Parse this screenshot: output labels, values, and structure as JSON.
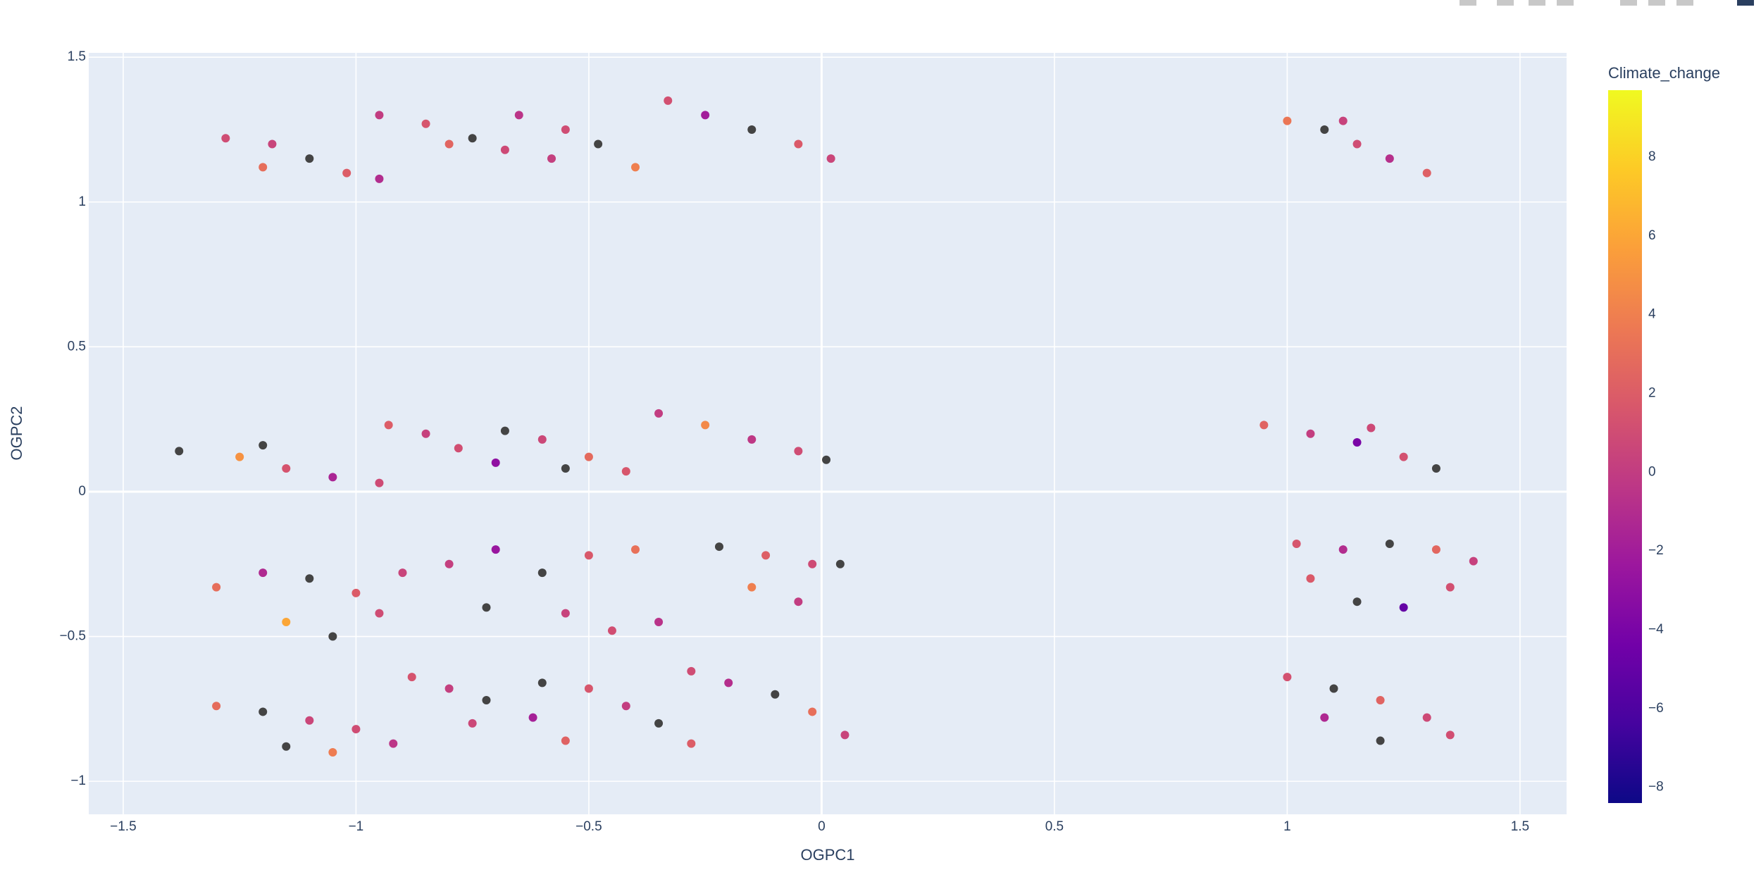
{
  "chart_data": {
    "type": "scatter",
    "x_label": "OGPC1",
    "y_label": "OGPC2",
    "colorbar_title": "Climate_change",
    "x": [
      -1.28,
      -1.18,
      -1.1,
      -1.02,
      -0.95,
      -1.2,
      -0.95,
      -0.85,
      -0.75,
      -0.68,
      -0.8,
      -0.65,
      -0.55,
      -0.48,
      -0.4,
      -0.58,
      -0.33,
      -0.25,
      -0.15,
      -0.05,
      0.02,
      1.0,
      1.08,
      1.15,
      1.22,
      1.3,
      1.12,
      -1.38,
      -1.25,
      -1.15,
      -1.05,
      -0.95,
      -1.2,
      -0.93,
      -0.85,
      -0.78,
      -0.7,
      -0.68,
      -0.6,
      -0.5,
      -0.42,
      -0.55,
      -0.35,
      -0.25,
      -0.15,
      -0.05,
      0.01,
      0.95,
      1.05,
      1.15,
      1.25,
      1.32,
      1.18,
      -1.3,
      -1.2,
      -1.1,
      -1.0,
      -0.9,
      -1.15,
      -1.05,
      -0.95,
      -0.8,
      -0.7,
      -0.6,
      -0.5,
      -0.4,
      -0.72,
      -0.55,
      -0.45,
      -0.35,
      -0.22,
      -0.12,
      -0.02,
      0.04,
      -0.15,
      -0.05,
      1.02,
      1.12,
      1.22,
      1.32,
      1.4,
      1.05,
      1.15,
      1.25,
      1.35,
      -1.3,
      -1.2,
      -1.1,
      -1.0,
      -0.92,
      -1.15,
      -1.05,
      -0.88,
      -0.8,
      -0.72,
      -0.62,
      -0.55,
      -0.75,
      -0.6,
      -0.5,
      -0.42,
      -0.35,
      -0.28,
      -0.28,
      -0.2,
      -0.1,
      -0.02,
      0.05,
      1.0,
      1.1,
      1.2,
      1.3,
      1.08,
      1.2,
      1.35
    ],
    "y": [
      1.22,
      1.2,
      1.15,
      1.1,
      1.08,
      1.12,
      1.3,
      1.27,
      1.22,
      1.18,
      1.2,
      1.3,
      1.25,
      1.2,
      1.12,
      1.15,
      1.35,
      1.3,
      1.25,
      1.2,
      1.15,
      1.28,
      1.25,
      1.2,
      1.15,
      1.1,
      1.28,
      0.14,
      0.12,
      0.08,
      0.05,
      0.03,
      0.16,
      0.23,
      0.2,
      0.15,
      0.1,
      0.21,
      0.18,
      0.12,
      0.07,
      0.08,
      0.27,
      0.23,
      0.18,
      0.14,
      0.11,
      0.23,
      0.2,
      0.17,
      0.12,
      0.08,
      0.22,
      -0.33,
      -0.28,
      -0.3,
      -0.35,
      -0.28,
      -0.45,
      -0.5,
      -0.42,
      -0.25,
      -0.2,
      -0.28,
      -0.22,
      -0.2,
      -0.4,
      -0.42,
      -0.48,
      -0.45,
      -0.19,
      -0.22,
      -0.25,
      -0.25,
      -0.33,
      -0.38,
      -0.18,
      -0.2,
      -0.18,
      -0.2,
      -0.24,
      -0.3,
      -0.38,
      -0.4,
      -0.33,
      -0.74,
      -0.76,
      -0.79,
      -0.82,
      -0.87,
      -0.88,
      -0.9,
      -0.64,
      -0.68,
      -0.72,
      -0.78,
      -0.86,
      -0.8,
      -0.66,
      -0.68,
      -0.74,
      -0.8,
      -0.87,
      -0.62,
      -0.66,
      -0.7,
      -0.76,
      -0.84,
      -0.64,
      -0.68,
      -0.72,
      -0.78,
      -0.78,
      -0.86,
      -0.84
    ],
    "marker_color": [
      1,
      0.5,
      null,
      2,
      -1,
      3,
      0,
      1.5,
      null,
      0.8,
      2.5,
      -0.5,
      1,
      null,
      4,
      0.2,
      1.2,
      -2,
      null,
      1.8,
      0.6,
      3.5,
      null,
      1,
      -0.8,
      2.2,
      0.4,
      null,
      5,
      1.4,
      -1.5,
      0.9,
      null,
      2,
      0.3,
      1.1,
      -3,
      null,
      0.7,
      2.8,
      1.6,
      null,
      0,
      4.5,
      -0.3,
      1,
      null,
      2.4,
      0.1,
      -4,
      1.3,
      null,
      0.8,
      3,
      -1.2,
      null,
      1.9,
      0.5,
      6,
      null,
      1,
      0.2,
      -2.5,
      null,
      1.7,
      3.2,
      null,
      0.4,
      1.1,
      -0.6,
      null,
      2.1,
      0.9,
      null,
      4,
      0,
      1.5,
      -1,
      null,
      2.6,
      0.3,
      1.8,
      null,
      -5,
      1.2,
      2.9,
      null,
      0.6,
      1,
      -0.4,
      null,
      3.8,
      1.4,
      0.2,
      null,
      -1.8,
      2.3,
      0.7,
      null,
      1.6,
      0.1,
      null,
      2,
      1,
      -0.9,
      null,
      3.1,
      0.5,
      1.3,
      null,
      2.4,
      0.8,
      -1.3,
      null,
      1.1
    ],
    "colorscale": [
      "#0d0887",
      "#46039f",
      "#7201a8",
      "#9c179e",
      "#bd3786",
      "#d8576b",
      "#ed7953",
      "#fb9f3a",
      "#fdca26",
      "#f0f921"
    ],
    "nan_color": "#444444",
    "clim": [
      -8.4,
      9.7
    ],
    "cticks": [
      {
        "value": -8,
        "label": "−8"
      },
      {
        "value": -6,
        "label": "−6"
      },
      {
        "value": -4,
        "label": "−4"
      },
      {
        "value": -2,
        "label": "−2"
      },
      0,
      2,
      4,
      6,
      8
    ],
    "xlim": [
      -1.574,
      1.6
    ],
    "xticks": [
      {
        "value": -1.5,
        "label": "−1.5"
      },
      {
        "value": -1,
        "label": "−1"
      },
      {
        "value": -0.5,
        "label": "−0.5"
      },
      0,
      0.5,
      1,
      1.5
    ],
    "ylim": [
      -1.114,
      1.515
    ],
    "yticks": [
      {
        "value": -1,
        "label": "−1"
      },
      {
        "value": -0.5,
        "label": "−0.5"
      },
      0,
      0.5,
      1,
      1.5
    ],
    "grid": true
  }
}
